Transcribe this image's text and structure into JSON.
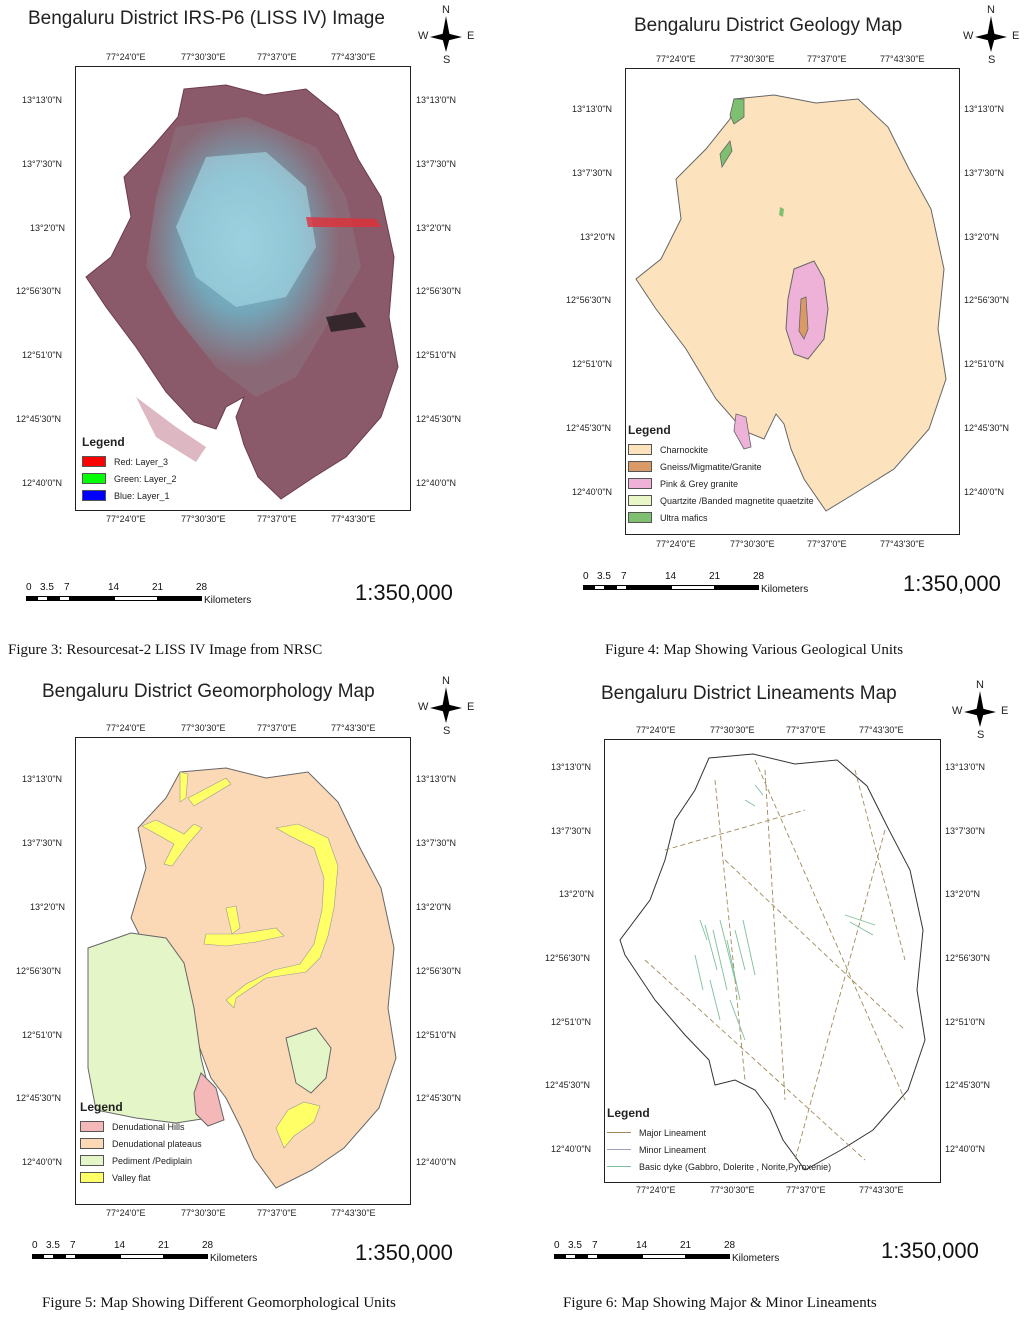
{
  "north_arrow": {
    "n": "N",
    "s": "S",
    "e": "E",
    "w": "W"
  },
  "colors": {
    "charnockite": "#fde3bd",
    "gneiss": "#d99a68",
    "pink_grey_granite": "#eeb2d8",
    "quartzite": "#e9f6c6",
    "ultra_mafics": "#7fbf70",
    "denudational_hills": "#f5b8b8",
    "denudational_plateaus": "#fbd9b6",
    "pediment": "#e4f5c8",
    "valley_flat": "#ffff66"
  },
  "panels": [
    {
      "title": "Bengaluru District IRS-P6 (LISS IV) Image",
      "top_ticks": [
        "77°24'0\"E",
        "77°30'30\"E",
        "77°37'0\"E",
        "77°43'30\"E"
      ],
      "bottom_ticks": [
        "77°24'0\"E",
        "77°30'30\"E",
        "77°37'0\"E",
        "77°43'30\"E"
      ],
      "left_ticks": [
        "13°13'0\"N",
        "13°7'30\"N",
        "13°2'0\"N",
        "12°56'30\"N",
        "12°51'0\"N",
        "12°45'30\"N",
        "12°40'0\"N"
      ],
      "right_ticks": [
        "13°13'0\"N",
        "13°7'30\"N",
        "13°2'0\"N",
        "12°56'30\"N",
        "12°51'0\"N",
        "12°45'30\"N",
        "12°40'0\"N"
      ],
      "legend": {
        "title": "Legend",
        "items": [
          {
            "label": "Red:   Layer_3",
            "color": "#ff0000"
          },
          {
            "label": "Green: Layer_2",
            "color": "#00ff00"
          },
          {
            "label": "Blue:  Layer_1",
            "color": "#0000ff"
          }
        ]
      },
      "scale": {
        "ticks": [
          "0",
          "3.5",
          "7",
          "14",
          "21",
          "28"
        ],
        "unit": "Kilometers",
        "ratio": "1:350,000"
      },
      "caption": "Figure 3: Resourcesat-2 LISS IV Image from NRSC"
    },
    {
      "title": "Bengaluru District Geology Map",
      "top_ticks": [
        "77°24'0\"E",
        "77°30'30\"E",
        "77°37'0\"E",
        "77°43'30\"E"
      ],
      "bottom_ticks": [
        "77°24'0\"E",
        "77°30'30\"E",
        "77°37'0\"E",
        "77°43'30\"E"
      ],
      "left_ticks": [
        "13°13'0\"N",
        "13°7'30\"N",
        "13°2'0\"N",
        "12°56'30\"N",
        "12°51'0\"N",
        "12°45'30\"N",
        "12°40'0\"N"
      ],
      "right_ticks": [
        "13°13'0\"N",
        "13°7'30\"N",
        "13°2'0\"N",
        "12°56'30\"N",
        "12°51'0\"N",
        "12°45'30\"N",
        "12°40'0\"N"
      ],
      "legend": {
        "title": "Legend",
        "items": [
          {
            "label": "Charnockite",
            "color": "#fde3bd"
          },
          {
            "label": "Gneiss/Migmatite/Granite",
            "color": "#d99a68"
          },
          {
            "label": "Pink & Grey granite",
            "color": "#eeb2d8"
          },
          {
            "label": "Quartzite /Banded magnetite quaetzite",
            "color": "#e9f6c6"
          },
          {
            "label": "Ultra mafics",
            "color": "#7fbf70"
          }
        ]
      },
      "scale": {
        "ticks": [
          "0",
          "3.5",
          "7",
          "14",
          "21",
          "28"
        ],
        "unit": "Kilometers",
        "ratio": "1:350,000"
      },
      "caption": "Figure 4: Map Showing Various Geological Units"
    },
    {
      "title": "Bengaluru District Geomorphology Map",
      "top_ticks": [
        "77°24'0\"E",
        "77°30'30\"E",
        "77°37'0\"E",
        "77°43'30\"E"
      ],
      "bottom_ticks": [
        "77°24'0\"E",
        "77°30'30\"E",
        "77°37'0\"E",
        "77°43'30\"E"
      ],
      "left_ticks": [
        "13°13'0\"N",
        "13°7'30\"N",
        "13°2'0\"N",
        "12°56'30\"N",
        "12°51'0\"N",
        "12°45'30\"N",
        "12°40'0\"N"
      ],
      "right_ticks": [
        "13°13'0\"N",
        "13°7'30\"N",
        "13°2'0\"N",
        "12°56'30\"N",
        "12°51'0\"N",
        "12°45'30\"N",
        "12°40'0\"N"
      ],
      "legend": {
        "title": "Legend",
        "items": [
          {
            "label": "Denudational Hills",
            "color": "#f5b8b8"
          },
          {
            "label": "Denudational plateaus",
            "color": "#fbd9b6"
          },
          {
            "label": "Pediment /Pediplain",
            "color": "#e4f5c8"
          },
          {
            "label": "Valley flat",
            "color": "#ffff66"
          }
        ]
      },
      "scale": {
        "ticks": [
          "0",
          "3.5",
          "7",
          "14",
          "21",
          "28"
        ],
        "unit": "Kilometers",
        "ratio": "1:350,000"
      },
      "caption": "Figure 5: Map Showing Different Geomorphological Units"
    },
    {
      "title": "Bengaluru District Lineaments Map",
      "top_ticks": [
        "77°24'0\"E",
        "77°30'30\"E",
        "77°37'0\"E",
        "77°43'30\"E"
      ],
      "bottom_ticks": [
        "77°24'0\"E",
        "77°30'30\"E",
        "77°37'0\"E",
        "77°43'30\"E"
      ],
      "left_ticks": [
        "13°13'0\"N",
        "13°7'30\"N",
        "13°2'0\"N",
        "12°56'30\"N",
        "12°51'0\"N",
        "12°45'30\"N",
        "12°40'0\"N"
      ],
      "right_ticks": [
        "13°13'0\"N",
        "13°7'30\"N",
        "13°2'0\"N",
        "12°56'30\"N",
        "12°51'0\"N",
        "12°45'30\"N",
        "12°40'0\"N"
      ],
      "legend": {
        "title": "Legend",
        "items": [
          {
            "label": "Major Lineament",
            "color": "#a08a5a"
          },
          {
            "label": "Minor Lineament",
            "color": "#9aa0b8"
          },
          {
            "label": "Basic dyke (Gabbro, Dolerite , Norite,Pyroxenie)",
            "color": "#7fbf9a"
          }
        ]
      },
      "scale": {
        "ticks": [
          "0",
          "3.5",
          "7",
          "14",
          "21",
          "28"
        ],
        "unit": "Kilometers",
        "ratio": "1:350,000"
      },
      "caption": "Figure 6: Map Showing Major & Minor Lineaments"
    }
  ]
}
